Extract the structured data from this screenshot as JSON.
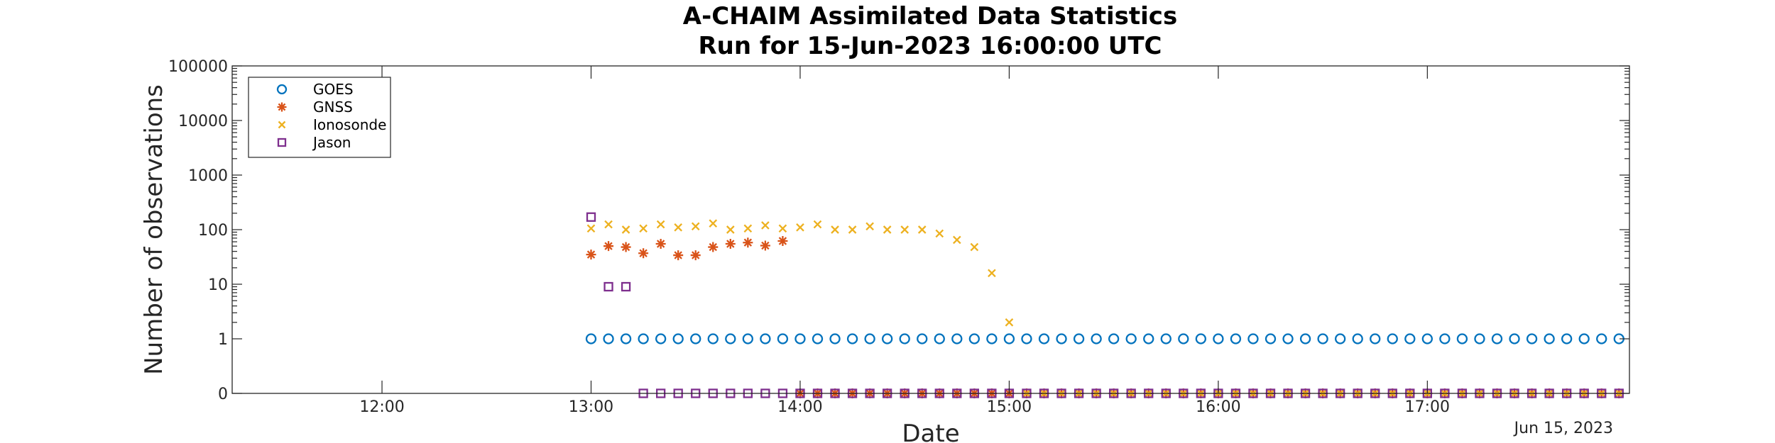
{
  "chart_data": {
    "type": "scatter",
    "title": [
      "A-CHAIM Assimilated Data Statistics",
      "Run for 15-Jun-2023 16:00:00 UTC"
    ],
    "xlabel": "Date",
    "ylabel": "Number of observations",
    "x_scale": "time",
    "y_scale": "symlog",
    "xlim": [
      "2023-06-15 11:17",
      "2023-06-15 17:58"
    ],
    "ylim": [
      0,
      100000
    ],
    "x_ticks": [
      "12:00",
      "13:00",
      "14:00",
      "15:00",
      "16:00",
      "17:00"
    ],
    "y_ticks": [
      "0",
      "1",
      "10",
      "100",
      "1000",
      "10000",
      "100000"
    ],
    "x_axis_date_label": "Jun 15, 2023",
    "legend_position": "top-left",
    "grid": false,
    "series": [
      {
        "name": "GOES",
        "marker": "circle",
        "color": "#0072BD",
        "points": [
          [
            "13:00",
            1
          ],
          [
            "13:05",
            1
          ],
          [
            "13:10",
            1
          ],
          [
            "13:15",
            1
          ],
          [
            "13:20",
            1
          ],
          [
            "13:25",
            1
          ],
          [
            "13:30",
            1
          ],
          [
            "13:35",
            1
          ],
          [
            "13:40",
            1
          ],
          [
            "13:45",
            1
          ],
          [
            "13:50",
            1
          ],
          [
            "13:55",
            1
          ],
          [
            "14:00",
            1
          ],
          [
            "14:05",
            1
          ],
          [
            "14:10",
            1
          ],
          [
            "14:15",
            1
          ],
          [
            "14:20",
            1
          ],
          [
            "14:25",
            1
          ],
          [
            "14:30",
            1
          ],
          [
            "14:35",
            1
          ],
          [
            "14:40",
            1
          ],
          [
            "14:45",
            1
          ],
          [
            "14:50",
            1
          ],
          [
            "14:55",
            1
          ],
          [
            "15:00",
            1
          ],
          [
            "15:05",
            1
          ],
          [
            "15:10",
            1
          ],
          [
            "15:15",
            1
          ],
          [
            "15:20",
            1
          ],
          [
            "15:25",
            1
          ],
          [
            "15:30",
            1
          ],
          [
            "15:35",
            1
          ],
          [
            "15:40",
            1
          ],
          [
            "15:45",
            1
          ],
          [
            "15:50",
            1
          ],
          [
            "15:55",
            1
          ],
          [
            "16:00",
            1
          ],
          [
            "16:05",
            1
          ],
          [
            "16:10",
            1
          ],
          [
            "16:15",
            1
          ],
          [
            "16:20",
            1
          ],
          [
            "16:25",
            1
          ],
          [
            "16:30",
            1
          ],
          [
            "16:35",
            1
          ],
          [
            "16:40",
            1
          ],
          [
            "16:45",
            1
          ],
          [
            "16:50",
            1
          ],
          [
            "16:55",
            1
          ],
          [
            "17:00",
            1
          ],
          [
            "17:05",
            1
          ],
          [
            "17:10",
            1
          ],
          [
            "17:15",
            1
          ],
          [
            "17:20",
            1
          ],
          [
            "17:25",
            1
          ],
          [
            "17:30",
            1
          ],
          [
            "17:35",
            1
          ],
          [
            "17:40",
            1
          ],
          [
            "17:45",
            1
          ],
          [
            "17:50",
            1
          ],
          [
            "17:55",
            1
          ]
        ]
      },
      {
        "name": "GNSS",
        "marker": "asterisk",
        "color": "#D95319",
        "points": [
          [
            "13:00",
            35
          ],
          [
            "13:05",
            50
          ],
          [
            "13:10",
            48
          ],
          [
            "13:15",
            37
          ],
          [
            "13:20",
            55
          ],
          [
            "13:25",
            34
          ],
          [
            "13:30",
            34
          ],
          [
            "13:35",
            48
          ],
          [
            "13:40",
            55
          ],
          [
            "13:45",
            58
          ],
          [
            "13:50",
            51
          ],
          [
            "13:55",
            62
          ],
          [
            "14:00",
            0
          ],
          [
            "14:05",
            0
          ],
          [
            "14:10",
            0
          ],
          [
            "14:15",
            0
          ],
          [
            "14:20",
            0
          ],
          [
            "14:25",
            0
          ],
          [
            "14:30",
            0
          ],
          [
            "14:35",
            0
          ],
          [
            "14:40",
            0
          ],
          [
            "14:45",
            0
          ],
          [
            "14:50",
            0
          ],
          [
            "14:55",
            0
          ],
          [
            "15:00",
            0
          ],
          [
            "15:05",
            0
          ],
          [
            "15:10",
            0
          ],
          [
            "15:15",
            0
          ],
          [
            "15:20",
            0
          ],
          [
            "15:25",
            0
          ],
          [
            "15:30",
            0
          ],
          [
            "15:35",
            0
          ],
          [
            "15:40",
            0
          ],
          [
            "15:45",
            0
          ],
          [
            "15:50",
            0
          ],
          [
            "15:55",
            0
          ],
          [
            "16:00",
            0
          ],
          [
            "16:05",
            0
          ],
          [
            "16:10",
            0
          ],
          [
            "16:15",
            0
          ],
          [
            "16:20",
            0
          ],
          [
            "16:25",
            0
          ],
          [
            "16:30",
            0
          ],
          [
            "16:35",
            0
          ],
          [
            "16:40",
            0
          ],
          [
            "16:45",
            0
          ],
          [
            "16:50",
            0
          ],
          [
            "16:55",
            0
          ],
          [
            "17:00",
            0
          ],
          [
            "17:05",
            0
          ],
          [
            "17:10",
            0
          ],
          [
            "17:15",
            0
          ],
          [
            "17:20",
            0
          ],
          [
            "17:25",
            0
          ],
          [
            "17:30",
            0
          ],
          [
            "17:35",
            0
          ],
          [
            "17:40",
            0
          ],
          [
            "17:45",
            0
          ],
          [
            "17:50",
            0
          ],
          [
            "17:55",
            0
          ]
        ]
      },
      {
        "name": "Ionosonde",
        "marker": "x",
        "color": "#EDB120",
        "points": [
          [
            "13:00",
            105
          ],
          [
            "13:05",
            125
          ],
          [
            "13:10",
            100
          ],
          [
            "13:15",
            105
          ],
          [
            "13:20",
            125
          ],
          [
            "13:25",
            110
          ],
          [
            "13:30",
            115
          ],
          [
            "13:35",
            130
          ],
          [
            "13:40",
            100
          ],
          [
            "13:45",
            105
          ],
          [
            "13:50",
            120
          ],
          [
            "13:55",
            105
          ],
          [
            "14:00",
            110
          ],
          [
            "14:05",
            125
          ],
          [
            "14:10",
            100
          ],
          [
            "14:15",
            100
          ],
          [
            "14:20",
            115
          ],
          [
            "14:25",
            100
          ],
          [
            "14:30",
            100
          ],
          [
            "14:35",
            100
          ],
          [
            "14:40",
            85
          ],
          [
            "14:45",
            65
          ],
          [
            "14:50",
            48
          ],
          [
            "14:55",
            16
          ],
          [
            "15:00",
            2
          ],
          [
            "15:05",
            0
          ],
          [
            "15:10",
            0
          ],
          [
            "15:15",
            0
          ],
          [
            "15:20",
            0
          ],
          [
            "15:25",
            0
          ],
          [
            "15:30",
            0
          ],
          [
            "15:35",
            0
          ],
          [
            "15:40",
            0
          ],
          [
            "15:45",
            0
          ],
          [
            "15:50",
            0
          ],
          [
            "15:55",
            0
          ],
          [
            "16:00",
            0
          ],
          [
            "16:05",
            0
          ],
          [
            "16:10",
            0
          ],
          [
            "16:15",
            0
          ],
          [
            "16:20",
            0
          ],
          [
            "16:25",
            0
          ],
          [
            "16:30",
            0
          ],
          [
            "16:35",
            0
          ],
          [
            "16:40",
            0
          ],
          [
            "16:45",
            0
          ],
          [
            "16:50",
            0
          ],
          [
            "16:55",
            0
          ],
          [
            "17:00",
            0
          ],
          [
            "17:05",
            0
          ],
          [
            "17:10",
            0
          ],
          [
            "17:15",
            0
          ],
          [
            "17:20",
            0
          ],
          [
            "17:25",
            0
          ],
          [
            "17:30",
            0
          ],
          [
            "17:35",
            0
          ],
          [
            "17:40",
            0
          ],
          [
            "17:45",
            0
          ],
          [
            "17:50",
            0
          ],
          [
            "17:55",
            0
          ]
        ]
      },
      {
        "name": "Jason",
        "marker": "square",
        "color": "#7E2F8E",
        "points": [
          [
            "13:00",
            170
          ],
          [
            "13:05",
            9
          ],
          [
            "13:10",
            9
          ],
          [
            "13:15",
            0
          ],
          [
            "13:20",
            0
          ],
          [
            "13:25",
            0
          ],
          [
            "13:30",
            0
          ],
          [
            "13:35",
            0
          ],
          [
            "13:40",
            0
          ],
          [
            "13:45",
            0
          ],
          [
            "13:50",
            0
          ],
          [
            "13:55",
            0
          ],
          [
            "14:00",
            0
          ],
          [
            "14:05",
            0
          ],
          [
            "14:10",
            0
          ],
          [
            "14:15",
            0
          ],
          [
            "14:20",
            0
          ],
          [
            "14:25",
            0
          ],
          [
            "14:30",
            0
          ],
          [
            "14:35",
            0
          ],
          [
            "14:40",
            0
          ],
          [
            "14:45",
            0
          ],
          [
            "14:50",
            0
          ],
          [
            "14:55",
            0
          ],
          [
            "15:00",
            0
          ],
          [
            "15:05",
            0
          ],
          [
            "15:10",
            0
          ],
          [
            "15:15",
            0
          ],
          [
            "15:20",
            0
          ],
          [
            "15:25",
            0
          ],
          [
            "15:30",
            0
          ],
          [
            "15:35",
            0
          ],
          [
            "15:40",
            0
          ],
          [
            "15:45",
            0
          ],
          [
            "15:50",
            0
          ],
          [
            "15:55",
            0
          ],
          [
            "16:00",
            0
          ],
          [
            "16:05",
            0
          ],
          [
            "16:10",
            0
          ],
          [
            "16:15",
            0
          ],
          [
            "16:20",
            0
          ],
          [
            "16:25",
            0
          ],
          [
            "16:30",
            0
          ],
          [
            "16:35",
            0
          ],
          [
            "16:40",
            0
          ],
          [
            "16:45",
            0
          ],
          [
            "16:50",
            0
          ],
          [
            "16:55",
            0
          ],
          [
            "17:00",
            0
          ],
          [
            "17:05",
            0
          ],
          [
            "17:10",
            0
          ],
          [
            "17:15",
            0
          ],
          [
            "17:20",
            0
          ],
          [
            "17:25",
            0
          ],
          [
            "17:30",
            0
          ],
          [
            "17:35",
            0
          ],
          [
            "17:40",
            0
          ],
          [
            "17:45",
            0
          ],
          [
            "17:50",
            0
          ],
          [
            "17:55",
            0
          ]
        ]
      }
    ]
  }
}
